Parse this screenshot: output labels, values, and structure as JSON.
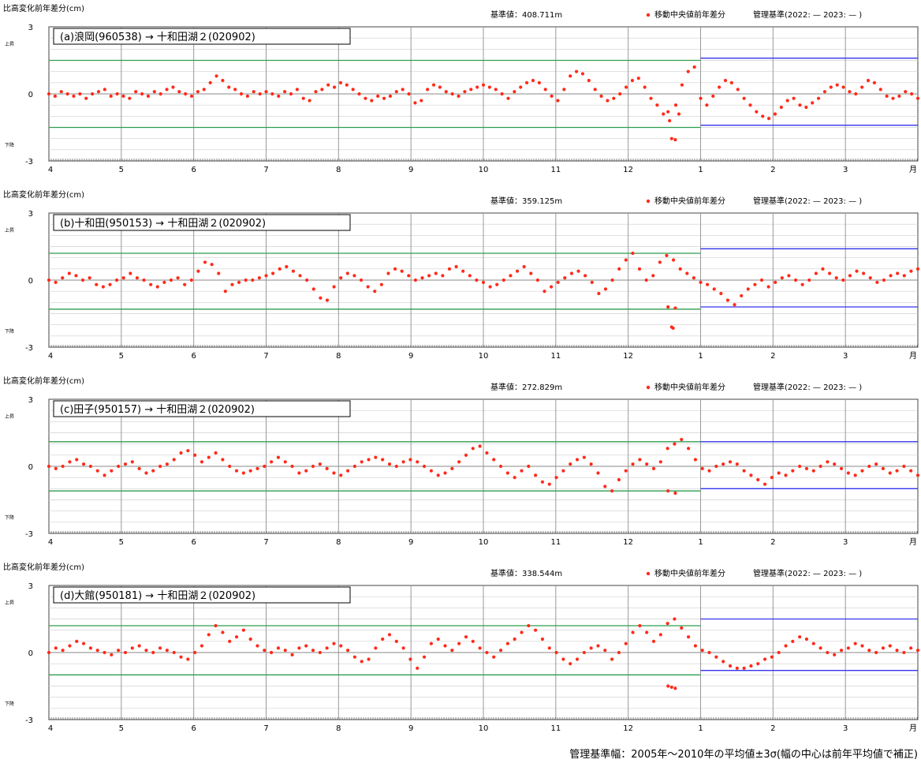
{
  "common": {
    "ylabel": "比高変化前年差分(cm)",
    "up_label": "上昇",
    "down_label": "下降",
    "legend_marker": "移動中央値前年差分",
    "legend_mgmt": "管理基準(2022: — 2023: — )",
    "footnote": "管理基準幅：2005年～2010年の平均値±3σ(幅の中心は前年平均値で補正)"
  },
  "colors": {
    "points": "#ff2a1a",
    "threshold_2022": "#2e9e4f",
    "threshold_2023": "#3333ee",
    "grid": "#999999",
    "zero_line": "#8a8a8a"
  },
  "chart_data": [
    {
      "type": "scatter",
      "title": "(a)浪岡(960538) → 十和田湖２(020902)",
      "reference": "基準値：408.711m",
      "x_ticks": [
        "4",
        "5",
        "6",
        "7",
        "8",
        "9",
        "10",
        "11",
        "12",
        "1",
        "2",
        "3",
        "月"
      ],
      "y_ticks": [
        "3",
        "0",
        "-3"
      ],
      "ylim": [
        -3,
        3
      ],
      "thresholds_2022": [
        1.5,
        -1.5
      ],
      "thresholds_2023": [
        1.6,
        -1.4
      ],
      "series": [
        {
          "values": [
            0.0,
            -0.1,
            0.1,
            0.0,
            -0.1,
            0.0,
            -0.2,
            0.0,
            0.1,
            0.2,
            -0.1,
            0.0,
            -0.1,
            -0.2,
            0.1,
            0.0,
            -0.1,
            0.1,
            0.0,
            0.2,
            0.3,
            0.1,
            0.0,
            -0.1,
            0.1,
            0.2,
            0.5,
            0.8,
            0.6,
            0.3,
            0.2,
            0.0,
            -0.1,
            0.1,
            0.0,
            0.1,
            0.0,
            -0.1,
            0.1,
            0.0,
            0.2,
            -0.2,
            -0.3,
            0.1,
            0.2,
            0.4,
            0.3,
            0.5,
            0.4,
            0.2,
            0.0,
            -0.2,
            -0.3,
            -0.1,
            -0.2,
            -0.1,
            0.1,
            0.2,
            0.0,
            -0.4,
            -0.3,
            0.2,
            0.4,
            0.3,
            0.1,
            0.0,
            -0.1,
            0.1,
            0.2,
            0.3,
            0.4,
            0.3,
            0.2,
            0.0,
            -0.2,
            0.1,
            0.3,
            0.5,
            0.6,
            0.5,
            0.2,
            -0.1,
            -0.3,
            0.2,
            0.8,
            1.0,
            0.9,
            0.6,
            0.2,
            -0.1,
            -0.3,
            -0.2,
            0.0,
            0.3,
            0.6,
            0.7,
            0.3,
            -0.2,
            -0.5,
            -0.9,
            -1.2,
            -0.5,
            0.4,
            1.0,
            1.2,
            -0.2,
            -0.5,
            -0.1,
            0.3,
            0.6,
            0.5,
            0.2,
            -0.2,
            -0.5,
            -0.8,
            -1.0,
            -1.1,
            -0.9,
            -0.6,
            -0.3,
            -0.2,
            -0.5,
            -0.6,
            -0.4,
            -0.2,
            0.1,
            0.3,
            0.4,
            0.3,
            0.1,
            0.0,
            0.3,
            0.6,
            0.5,
            0.2,
            -0.1,
            -0.2,
            -0.1,
            0.1,
            0.0,
            -0.2
          ],
          "outliers": [
            [
              12.6,
              -2.0
            ],
            [
              12.65,
              -2.05
            ],
            [
              12.55,
              -0.8
            ],
            [
              12.7,
              -0.9
            ]
          ]
        }
      ]
    },
    {
      "type": "scatter",
      "title": "(b)十和田(950153) → 十和田湖２(020902)",
      "reference": "基準値：359.125m",
      "x_ticks": [
        "4",
        "5",
        "6",
        "7",
        "8",
        "9",
        "10",
        "11",
        "12",
        "1",
        "2",
        "3",
        "月"
      ],
      "y_ticks": [
        "3",
        "0",
        "-3"
      ],
      "ylim": [
        -3,
        3
      ],
      "thresholds_2022": [
        1.2,
        -1.3
      ],
      "thresholds_2023": [
        1.4,
        -1.2
      ],
      "series": [
        {
          "values": [
            0.0,
            -0.1,
            0.1,
            0.3,
            0.2,
            0.0,
            0.1,
            -0.2,
            -0.3,
            -0.2,
            0.0,
            0.1,
            0.3,
            0.1,
            0.0,
            -0.2,
            -0.3,
            -0.1,
            0.0,
            0.1,
            -0.2,
            0.0,
            0.4,
            0.8,
            0.7,
            0.3,
            -0.5,
            -0.2,
            -0.1,
            0.0,
            0.0,
            0.1,
            0.2,
            0.3,
            0.5,
            0.6,
            0.4,
            0.2,
            0.0,
            -0.4,
            -0.8,
            -0.9,
            -0.3,
            0.1,
            0.3,
            0.2,
            0.0,
            -0.3,
            -0.5,
            -0.2,
            0.3,
            0.5,
            0.4,
            0.2,
            0.0,
            0.1,
            0.2,
            0.3,
            0.2,
            0.5,
            0.6,
            0.4,
            0.2,
            0.0,
            -0.1,
            -0.3,
            -0.2,
            0.0,
            0.2,
            0.4,
            0.6,
            0.3,
            0.0,
            -0.5,
            -0.3,
            -0.1,
            0.1,
            0.3,
            0.4,
            0.2,
            -0.1,
            -0.6,
            -0.4,
            0.0,
            0.5,
            0.9,
            1.2,
            0.5,
            0.0,
            0.2,
            0.8,
            1.1,
            0.9,
            0.5,
            0.3,
            0.1,
            -0.1,
            -0.2,
            -0.4,
            -0.6,
            -0.9,
            -1.1,
            -0.7,
            -0.4,
            -0.2,
            0.0,
            -0.3,
            -0.1,
            0.1,
            0.2,
            0.0,
            -0.2,
            0.0,
            0.3,
            0.5,
            0.3,
            0.1,
            0.0,
            0.2,
            0.4,
            0.3,
            0.1,
            -0.1,
            0.0,
            0.2,
            0.3,
            0.2,
            0.4,
            0.5
          ],
          "outliers": [
            [
              12.55,
              -1.2
            ],
            [
              12.65,
              -1.25
            ],
            [
              12.6,
              -2.1
            ],
            [
              12.62,
              -2.15
            ]
          ]
        }
      ]
    },
    {
      "type": "scatter",
      "title": "(c)田子(950157) → 十和田湖２(020902)",
      "reference": "基準値：272.829m",
      "x_ticks": [
        "4",
        "5",
        "6",
        "7",
        "8",
        "9",
        "10",
        "11",
        "12",
        "1",
        "2",
        "3",
        "月"
      ],
      "y_ticks": [
        "3",
        "0",
        "-3"
      ],
      "ylim": [
        -3,
        3
      ],
      "thresholds_2022": [
        1.1,
        -1.1
      ],
      "thresholds_2023": [
        1.1,
        -1.0
      ],
      "series": [
        {
          "values": [
            0.0,
            -0.1,
            0.0,
            0.2,
            0.3,
            0.1,
            0.0,
            -0.2,
            -0.4,
            -0.2,
            0.0,
            0.1,
            0.2,
            -0.1,
            -0.3,
            -0.2,
            0.0,
            0.1,
            0.3,
            0.6,
            0.7,
            0.5,
            0.2,
            0.4,
            0.6,
            0.3,
            0.0,
            -0.2,
            -0.3,
            -0.2,
            -0.1,
            0.0,
            0.2,
            0.4,
            0.2,
            0.0,
            -0.3,
            -0.2,
            0.0,
            0.1,
            -0.1,
            -0.3,
            -0.4,
            -0.2,
            0.0,
            0.2,
            0.3,
            0.4,
            0.3,
            0.1,
            0.0,
            0.2,
            0.3,
            0.2,
            0.0,
            -0.2,
            -0.4,
            -0.3,
            -0.1,
            0.2,
            0.5,
            0.8,
            0.9,
            0.6,
            0.3,
            0.0,
            -0.3,
            -0.5,
            -0.2,
            0.0,
            -0.4,
            -0.7,
            -0.8,
            -0.5,
            -0.2,
            0.1,
            0.3,
            0.4,
            0.1,
            -0.3,
            -0.9,
            -1.1,
            -0.6,
            -0.2,
            0.1,
            0.3,
            0.1,
            -0.1,
            0.2,
            0.8,
            1.0,
            1.2,
            0.8,
            0.3,
            -0.1,
            -0.2,
            0.0,
            0.1,
            0.2,
            0.1,
            -0.2,
            -0.4,
            -0.6,
            -0.8,
            -0.5,
            -0.3,
            -0.4,
            -0.2,
            0.0,
            -0.1,
            -0.2,
            0.0,
            0.2,
            0.1,
            -0.1,
            -0.3,
            -0.4,
            -0.2,
            0.0,
            0.1,
            -0.1,
            -0.3,
            -0.2,
            0.0,
            -0.2,
            -0.4
          ],
          "outliers": [
            [
              12.55,
              -1.1
            ],
            [
              12.65,
              -1.2
            ]
          ]
        }
      ]
    },
    {
      "type": "scatter",
      "title": "(d)大館(950181) → 十和田湖２(020902)",
      "reference": "基準値：338.544m",
      "x_ticks": [
        "4",
        "5",
        "6",
        "7",
        "8",
        "9",
        "10",
        "11",
        "12",
        "1",
        "2",
        "3",
        "月"
      ],
      "y_ticks": [
        "3",
        "0",
        "-3"
      ],
      "ylim": [
        -3,
        3
      ],
      "thresholds_2022": [
        1.2,
        -1.0
      ],
      "thresholds_2023": [
        1.5,
        -0.8
      ],
      "series": [
        {
          "values": [
            0.0,
            0.2,
            0.1,
            0.3,
            0.5,
            0.4,
            0.2,
            0.1,
            0.0,
            -0.1,
            0.1,
            0.0,
            0.2,
            0.3,
            0.1,
            0.0,
            0.2,
            0.1,
            0.0,
            -0.2,
            -0.3,
            0.0,
            0.3,
            0.8,
            1.2,
            0.9,
            0.5,
            0.7,
            1.0,
            0.6,
            0.3,
            0.1,
            0.0,
            0.2,
            0.1,
            -0.1,
            0.2,
            0.3,
            0.1,
            0.0,
            0.2,
            0.4,
            0.3,
            0.1,
            -0.2,
            -0.4,
            -0.3,
            0.2,
            0.6,
            0.8,
            0.5,
            0.2,
            -0.3,
            -0.7,
            -0.2,
            0.4,
            0.6,
            0.3,
            0.1,
            0.4,
            0.7,
            0.5,
            0.2,
            0.0,
            -0.2,
            0.1,
            0.4,
            0.6,
            0.9,
            1.2,
            1.0,
            0.6,
            0.2,
            0.0,
            -0.3,
            -0.5,
            -0.3,
            0.0,
            0.2,
            0.3,
            0.1,
            -0.3,
            0.0,
            0.4,
            0.9,
            1.2,
            0.9,
            0.5,
            0.8,
            1.3,
            1.5,
            1.1,
            0.7,
            0.3,
            0.1,
            0.0,
            -0.2,
            -0.4,
            -0.6,
            -0.7,
            -0.7,
            -0.6,
            -0.5,
            -0.3,
            -0.2,
            0.0,
            0.3,
            0.5,
            0.7,
            0.6,
            0.4,
            0.2,
            0.0,
            -0.1,
            0.1,
            0.2,
            0.4,
            0.3,
            0.1,
            0.0,
            0.2,
            0.3,
            0.1,
            0.0,
            0.2,
            0.1
          ],
          "outliers": [
            [
              12.55,
              -1.5
            ],
            [
              12.65,
              -1.6
            ],
            [
              12.6,
              -1.55
            ]
          ]
        }
      ]
    }
  ]
}
